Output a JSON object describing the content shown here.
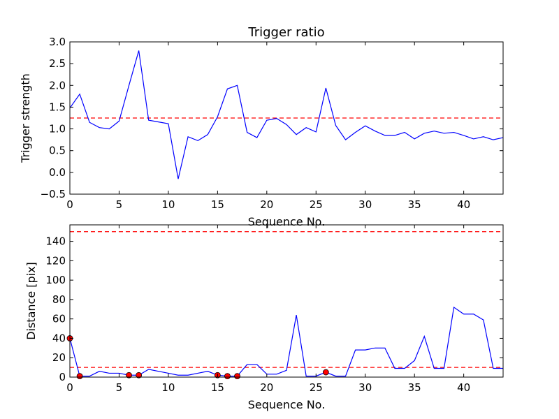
{
  "chart_data": [
    {
      "type": "line",
      "title": "Trigger ratio",
      "xlabel": "Sequence No.",
      "ylabel": "Trigger strength",
      "xlim": [
        0,
        44
      ],
      "ylim": [
        -0.5,
        3.0
      ],
      "xticks": [
        0,
        5,
        10,
        15,
        20,
        25,
        30,
        35,
        40
      ],
      "yticks": [
        -0.5,
        0.0,
        0.5,
        1.0,
        1.5,
        2.0,
        2.5,
        3.0
      ],
      "ytick_labels": [
        "−0.5",
        "0.0",
        "0.5",
        "1.0",
        "1.5",
        "2.0",
        "2.5",
        "3.0"
      ],
      "grid": false,
      "line_color": "#0000ff",
      "threshold_color": "#ff0000",
      "thresholds": [
        1.25
      ],
      "series": [
        {
          "x": [
            0,
            1,
            2,
            3,
            4,
            5,
            6,
            7,
            8,
            9,
            10,
            11,
            12,
            13,
            14,
            15,
            16,
            17,
            18,
            19,
            20,
            21,
            22,
            23,
            24,
            25,
            26,
            27,
            28,
            29,
            30,
            31,
            32,
            33,
            34,
            35,
            36,
            37,
            38,
            39,
            40,
            41,
            42,
            43,
            44
          ],
          "values": [
            1.48,
            1.8,
            1.15,
            1.03,
            1.0,
            1.18,
            2.0,
            2.8,
            1.2,
            1.16,
            1.12,
            -0.15,
            0.82,
            0.73,
            0.87,
            1.28,
            1.92,
            2.0,
            0.92,
            0.8,
            1.2,
            1.24,
            1.1,
            0.87,
            1.03,
            0.93,
            1.94,
            1.08,
            0.75,
            0.92,
            1.07,
            0.95,
            0.85,
            0.85,
            0.92,
            0.77,
            0.9,
            0.95,
            0.9,
            0.92,
            0.85,
            0.77,
            0.82,
            0.75,
            0.8
          ]
        }
      ]
    },
    {
      "type": "line",
      "title": "",
      "xlabel": "Sequence No.",
      "ylabel": "Distance [pix]",
      "xlim": [
        0,
        44
      ],
      "ylim": [
        0,
        157
      ],
      "xticks": [
        0,
        5,
        10,
        15,
        20,
        25,
        30,
        35,
        40
      ],
      "yticks": [
        0,
        20,
        40,
        60,
        80,
        100,
        120,
        140
      ],
      "ytick_labels": [
        "0",
        "20",
        "40",
        "60",
        "80",
        "100",
        "120",
        "140"
      ],
      "grid": false,
      "line_color": "#0000ff",
      "threshold_color": "#ff0000",
      "marker_color": "#ff0000",
      "thresholds": [
        150,
        10
      ],
      "series": [
        {
          "x": [
            0,
            1,
            2,
            3,
            4,
            5,
            6,
            7,
            8,
            9,
            10,
            11,
            12,
            13,
            14,
            15,
            16,
            17,
            18,
            19,
            20,
            21,
            22,
            23,
            24,
            25,
            26,
            27,
            28,
            29,
            30,
            31,
            32,
            33,
            34,
            35,
            36,
            37,
            38,
            39,
            40,
            41,
            42,
            43,
            44
          ],
          "values": [
            40,
            1,
            1,
            6,
            4,
            4,
            2,
            2,
            8,
            6,
            4,
            2,
            2,
            4,
            6,
            2,
            1,
            1,
            13,
            13,
            3,
            3,
            7,
            64,
            1,
            1,
            5,
            1,
            1,
            28,
            28,
            30,
            30,
            9,
            9,
            17,
            42,
            9,
            9,
            72,
            65,
            65,
            59,
            9,
            9
          ]
        }
      ],
      "highlighted_points": {
        "x": [
          0,
          1,
          6,
          7,
          15,
          16,
          17,
          26
        ],
        "values": [
          40,
          1,
          2,
          2,
          2,
          1,
          1,
          5
        ]
      }
    }
  ]
}
